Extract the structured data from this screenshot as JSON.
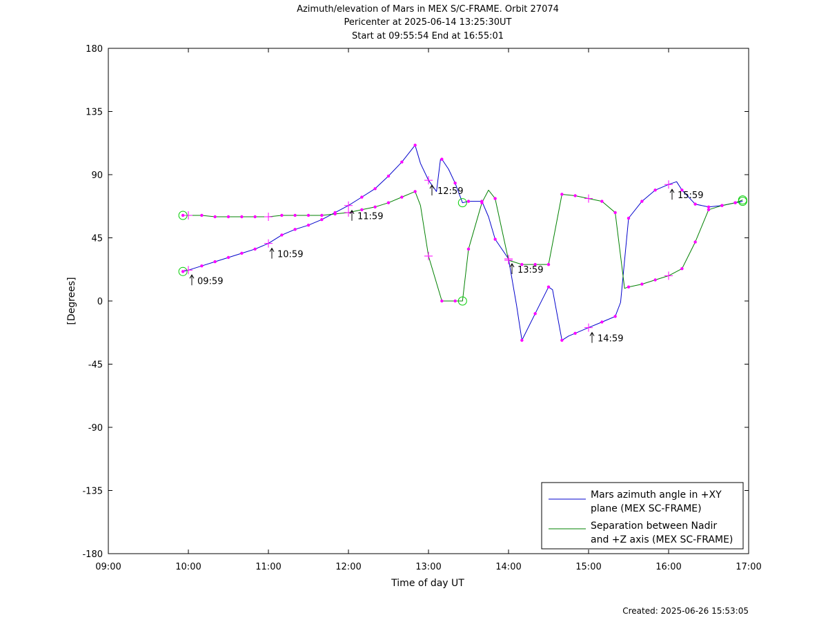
{
  "chart_data": {
    "type": "line",
    "title": "Azimuth/elevation of Mars in MEX S/C-FRAME.  Orbit 27074",
    "subtitle_1": "Pericenter at 2025-06-14 13:25:30UT",
    "subtitle_2": "Start at 09:55:54 End at 16:55:01",
    "xlabel": "Time of day UT",
    "ylabel": "[Degrees]",
    "xlim": [
      9,
      17
    ],
    "ylim": [
      -180,
      180
    ],
    "xticks": [
      9,
      10,
      11,
      12,
      13,
      14,
      15,
      16,
      17
    ],
    "xtick_labels": [
      "09:00",
      "10:00",
      "11:00",
      "12:00",
      "13:00",
      "14:00",
      "15:00",
      "16:00",
      "17:00"
    ],
    "yticks": [
      180,
      135,
      90,
      45,
      0,
      -45,
      -90,
      -135,
      -180
    ],
    "ytick_labels": [
      "180",
      "135",
      "90",
      "45",
      "0",
      "-45",
      "-90",
      "-135",
      "-180"
    ],
    "grid": false,
    "legend_position": "bottom-right",
    "colors": {
      "azimuth": "#0000cc",
      "separation": "#008000",
      "marker": "#ff00ff",
      "endpoint": "#00cc00"
    },
    "series": [
      {
        "name": "Mars azimuth angle in +XY plane (MEX SC-FRAME)",
        "legend_line1": "Mars azimuth angle in +XY",
        "legend_line2": "plane (MEX SC-FRAME)",
        "color": "#0000cc",
        "x": [
          9.932,
          10.0,
          10.167,
          10.333,
          10.5,
          10.667,
          10.833,
          11.0,
          11.167,
          11.333,
          11.5,
          11.667,
          11.833,
          12.0,
          12.167,
          12.333,
          12.5,
          12.667,
          12.833,
          12.9,
          13.0,
          13.1,
          13.15,
          13.167,
          13.25,
          13.333,
          13.425,
          13.5,
          13.667,
          13.75,
          13.833,
          14.0,
          14.1,
          14.167,
          14.333,
          14.5,
          14.55,
          14.667,
          14.75,
          14.833,
          15.0,
          15.167,
          15.333,
          15.4,
          15.5,
          15.667,
          15.833,
          16.0,
          16.1,
          16.167,
          16.333,
          16.5,
          16.667,
          16.833,
          16.925
        ],
        "y": [
          21,
          22,
          25,
          28,
          31,
          34,
          37,
          41,
          47,
          51,
          54,
          58,
          63,
          68,
          74,
          80,
          89,
          99,
          111,
          98,
          86,
          78,
          101,
          101,
          94,
          84,
          70,
          71,
          71,
          60,
          44,
          30,
          -3,
          -28,
          -9,
          10,
          8,
          -28,
          -25,
          -23,
          -19,
          -15,
          -11,
          -1,
          59,
          71,
          79,
          83,
          85,
          79,
          69,
          67,
          68,
          70,
          71
        ]
      },
      {
        "name": "Separation between Nadir and +Z axis (MEX SC-FRAME)",
        "legend_line1": "Separation between Nadir",
        "legend_line2": "and +Z axis (MEX SC-FRAME)",
        "color": "#008000",
        "x": [
          9.932,
          10.0,
          10.167,
          10.333,
          10.5,
          10.667,
          10.833,
          11.0,
          11.167,
          11.333,
          11.5,
          11.667,
          11.833,
          12.0,
          12.167,
          12.333,
          12.5,
          12.667,
          12.833,
          12.9,
          13.0,
          13.167,
          13.333,
          13.425,
          13.5,
          13.667,
          13.75,
          13.833,
          14.0,
          14.167,
          14.333,
          14.5,
          14.667,
          14.833,
          15.0,
          15.167,
          15.333,
          15.45,
          15.5,
          15.667,
          15.833,
          16.0,
          16.167,
          16.333,
          16.5,
          16.667,
          16.833,
          16.925
        ],
        "y": [
          61,
          61,
          61,
          60,
          60,
          60,
          60,
          60,
          61,
          61,
          61,
          61,
          62,
          63,
          65,
          67,
          70,
          74,
          78,
          68,
          32,
          0,
          0,
          0,
          37,
          70,
          79,
          73,
          29,
          26,
          26,
          26,
          76,
          75,
          73,
          71,
          63,
          9,
          10,
          12,
          15,
          18,
          23,
          42,
          65,
          68,
          70,
          72
        ]
      }
    ],
    "markers": {
      "azimuth_x": [
        9.932,
        10.167,
        10.333,
        10.5,
        10.667,
        10.833,
        11.167,
        11.333,
        11.5,
        11.667,
        11.833,
        12.167,
        12.333,
        12.5,
        12.667,
        12.833,
        13.167,
        13.333,
        13.5,
        13.667,
        13.833,
        14.167,
        14.333,
        14.5,
        14.667,
        14.833,
        15.167,
        15.333,
        15.5,
        15.667,
        15.833,
        16.167,
        16.333,
        16.5,
        16.667,
        16.833
      ],
      "azimuth_y": [
        21,
        25,
        28,
        31,
        34,
        37,
        47,
        51,
        54,
        58,
        63,
        74,
        80,
        89,
        99,
        111,
        101,
        84,
        71,
        71,
        44,
        -28,
        -9,
        10,
        -28,
        -23,
        -15,
        -11,
        59,
        71,
        79,
        79,
        69,
        67,
        68,
        70
      ],
      "separation_x": [
        9.932,
        10.167,
        10.333,
        10.5,
        10.667,
        10.833,
        11.167,
        11.333,
        11.5,
        11.667,
        11.833,
        12.167,
        12.333,
        12.5,
        12.667,
        12.833,
        13.167,
        13.333,
        13.5,
        13.667,
        13.833,
        14.167,
        14.333,
        14.5,
        14.667,
        14.833,
        15.167,
        15.333,
        15.5,
        15.667,
        15.833,
        16.167,
        16.333,
        16.5,
        16.667,
        16.833
      ],
      "separation_y": [
        61,
        61,
        60,
        60,
        60,
        60,
        61,
        61,
        61,
        61,
        62,
        65,
        67,
        70,
        74,
        78,
        0,
        0,
        37,
        70,
        73,
        26,
        26,
        26,
        76,
        75,
        71,
        63,
        10,
        12,
        15,
        23,
        42,
        65,
        68,
        70
      ]
    },
    "hour_ticks": {
      "x": [
        10.0,
        11.0,
        12.0,
        13.0,
        14.0,
        15.0,
        16.0
      ],
      "azimuth_y": [
        22,
        41,
        68,
        86,
        30,
        -19,
        83
      ],
      "separation_y": [
        61,
        60,
        63,
        32,
        29,
        73,
        18
      ],
      "labels": [
        "09:59",
        "10:59",
        "11:59",
        "12:59",
        "13:59",
        "14:59",
        "15:59"
      ],
      "label_anchor_y": [
        22,
        41,
        68,
        86,
        30,
        -19,
        83
      ]
    },
    "endpoint_circles": [
      {
        "x": 9.932,
        "y": 21
      },
      {
        "x": 9.932,
        "y": 61
      },
      {
        "x": 13.425,
        "y": 0
      },
      {
        "x": 13.425,
        "y": 70
      },
      {
        "x": 16.925,
        "y": 71
      },
      {
        "x": 16.925,
        "y": 72
      }
    ]
  },
  "footer": {
    "created": "Created: 2025-06-26 15:53:05"
  }
}
